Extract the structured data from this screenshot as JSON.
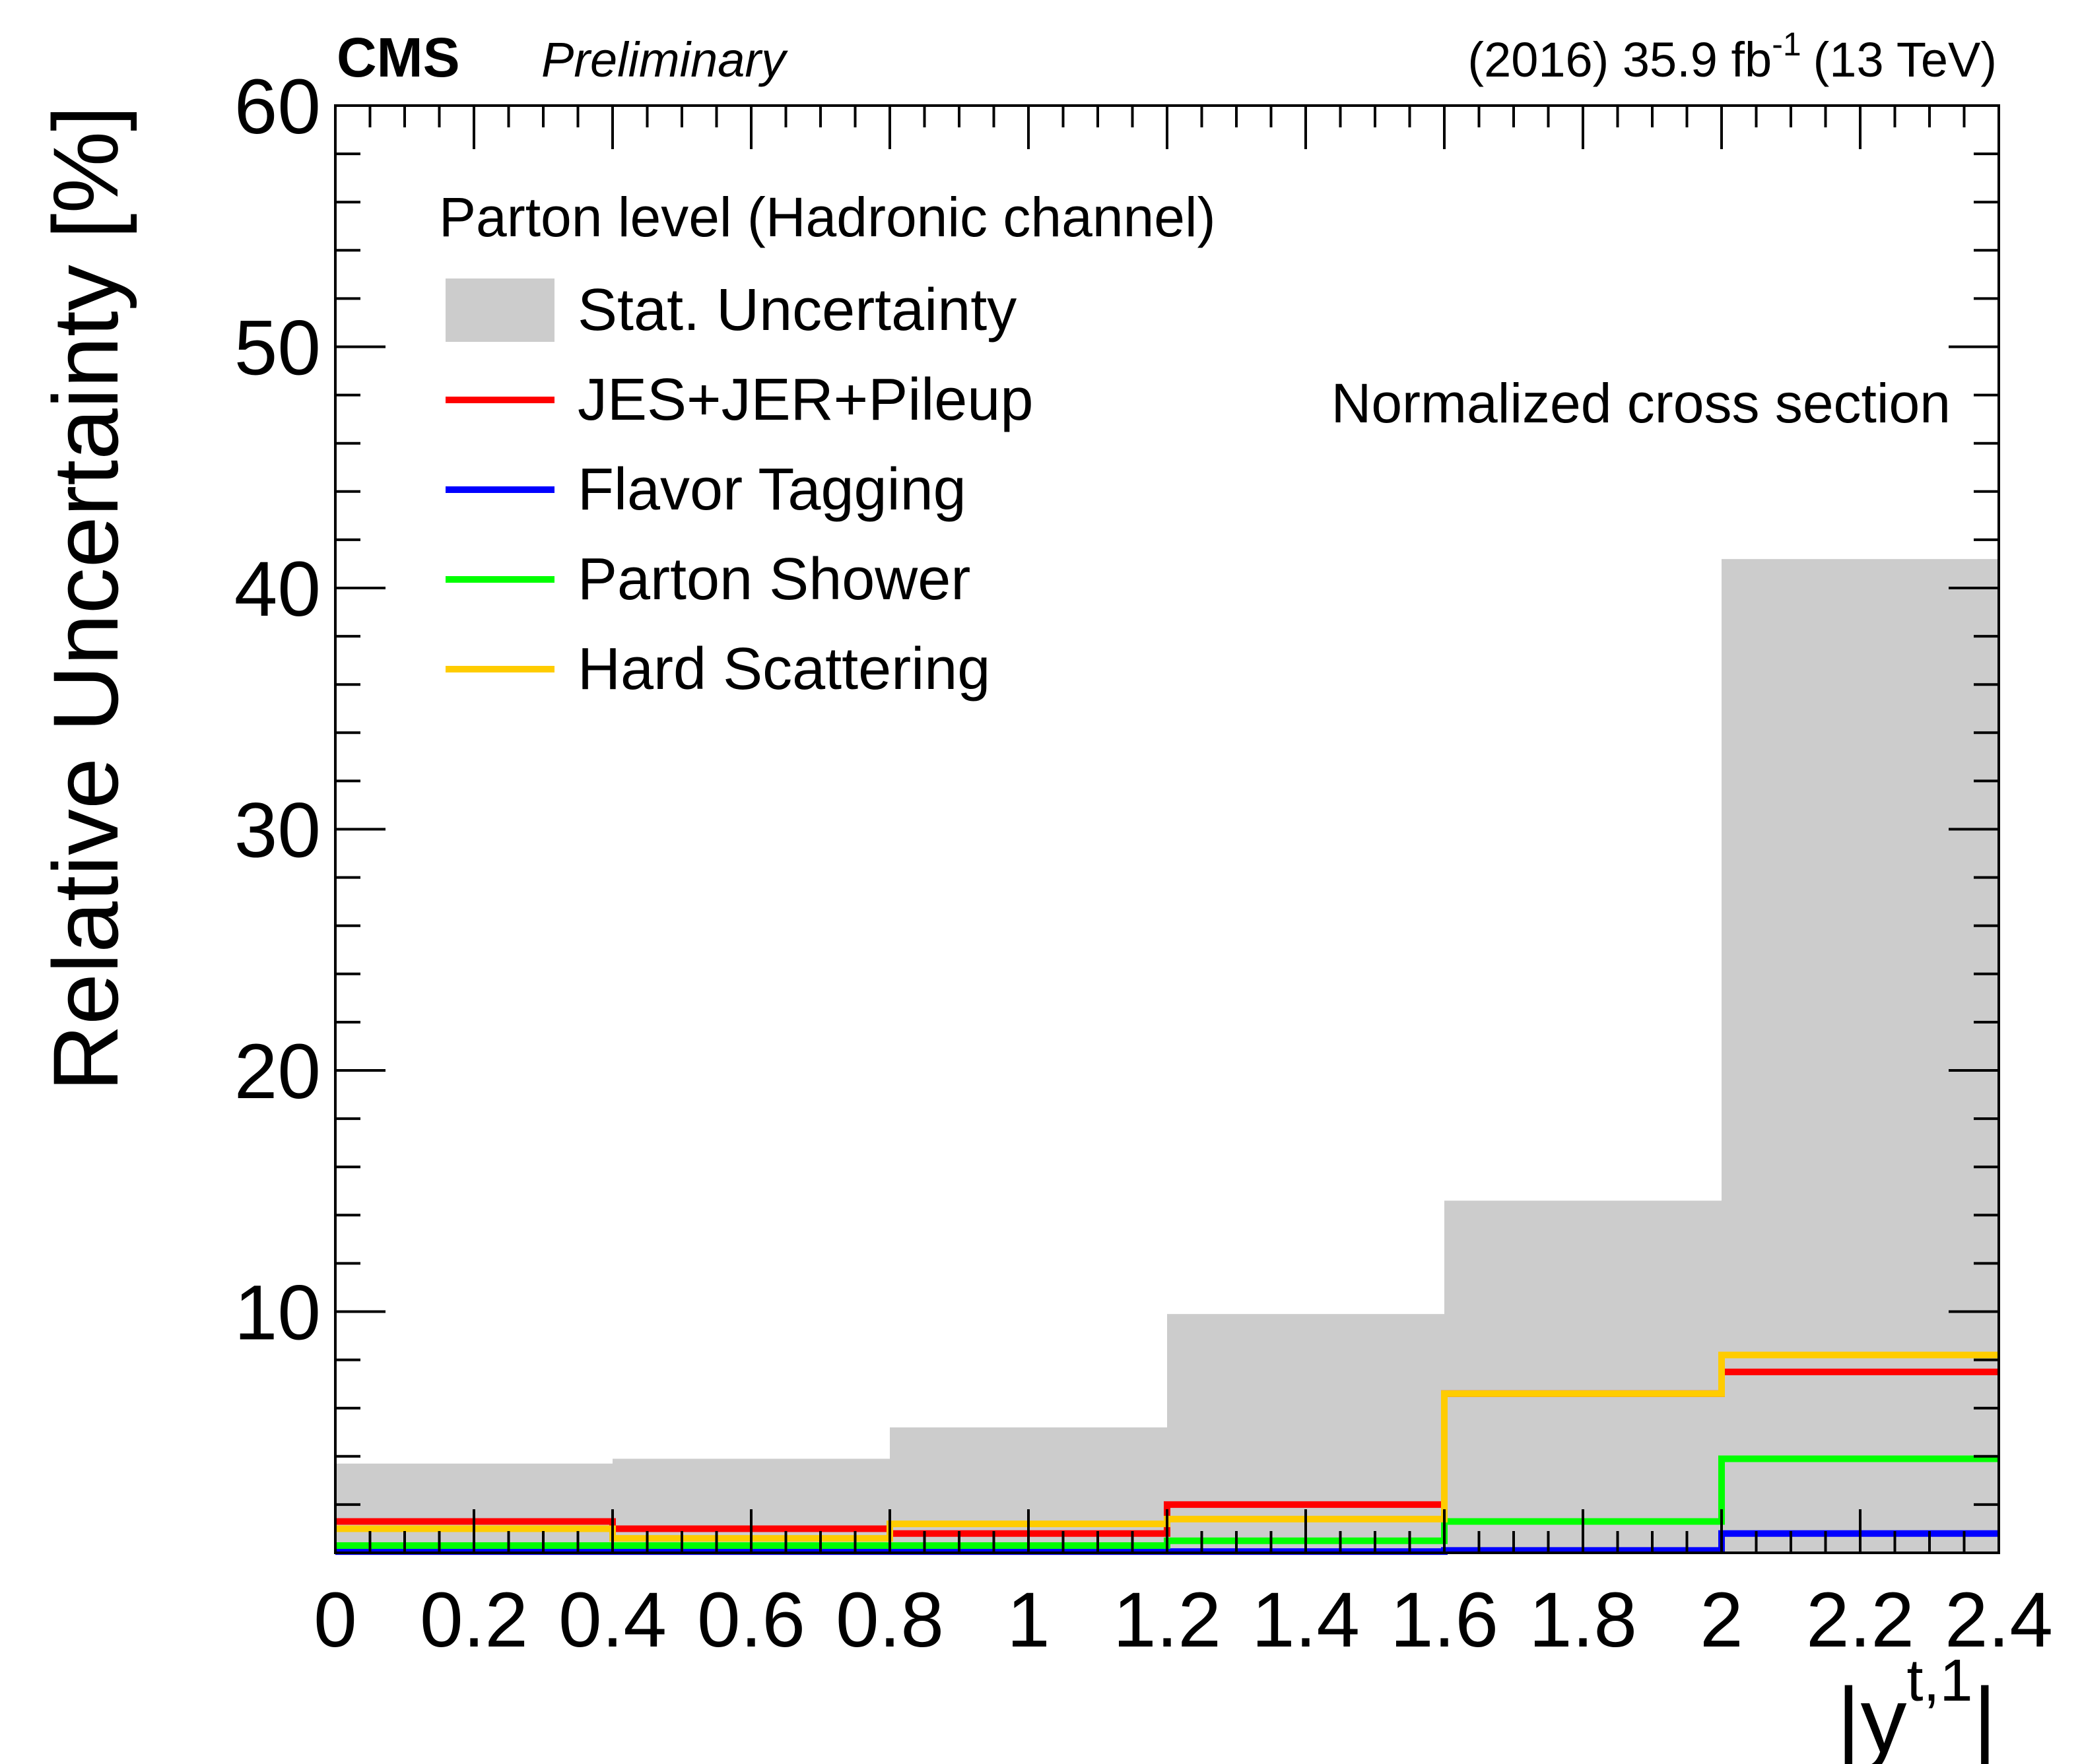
{
  "header": {
    "experiment": "CMS",
    "status": "Preliminary",
    "lumi_prefix": "(2016) 35.9 fb",
    "lumi_exponent": "-1",
    "energy": "(13 TeV)"
  },
  "legend": {
    "title": "Parton level (Hadronic channel)",
    "entries": [
      {
        "label": "Stat. Uncertainty",
        "kind": "fill",
        "color": "#cccccc"
      },
      {
        "label": "JES+JER+Pileup",
        "kind": "line",
        "color": "#ff0000"
      },
      {
        "label": "Flavor Tagging",
        "kind": "line",
        "color": "#0000ff"
      },
      {
        "label": "Parton Shower",
        "kind": "line",
        "color": "#00ff00"
      },
      {
        "label": "Hard Scattering",
        "kind": "line",
        "color": "#ffcc00"
      }
    ]
  },
  "annotation": "Normalized cross section",
  "chart_data": {
    "type": "histogram",
    "title": "",
    "xlabel_base": "|y",
    "xlabel_sup": "t,1",
    "xlabel_close": "|",
    "ylabel": "Relative Uncertainty [%]",
    "xlim": [
      0,
      2.4
    ],
    "ylim": [
      0,
      60
    ],
    "x_ticks": [
      "0",
      "0.2",
      "0.4",
      "0.6",
      "0.8",
      "1",
      "1.2",
      "1.4",
      "1.6",
      "1.8",
      "2",
      "2.2",
      "2.4"
    ],
    "x_tick_values": [
      0,
      0.2,
      0.4,
      0.6,
      0.8,
      1.0,
      1.2,
      1.4,
      1.6,
      1.8,
      2.0,
      2.2,
      2.4
    ],
    "y_ticks": [
      "10",
      "20",
      "30",
      "40",
      "50",
      "60"
    ],
    "y_tick_values": [
      10,
      20,
      30,
      40,
      50,
      60
    ],
    "bin_edges": [
      0,
      0.4,
      0.8,
      1.2,
      1.6,
      2.0,
      2.4
    ],
    "grid": false,
    "series": [
      {
        "name": "Stat. Uncertainty",
        "style": "fill",
        "color": "#cccccc",
        "values": [
          3.7,
          3.9,
          5.2,
          9.9,
          14.6,
          41.2
        ]
      },
      {
        "name": "JES+JER+Pileup",
        "style": "step",
        "color": "#ff0000",
        "values": [
          1.3,
          1.0,
          0.8,
          2.0,
          6.6,
          7.5
        ]
      },
      {
        "name": "Flavor Tagging",
        "style": "step",
        "color": "#0000ff",
        "values": [
          0.05,
          0.05,
          0.05,
          0.05,
          0.1,
          0.8
        ]
      },
      {
        "name": "Parton Shower",
        "style": "step",
        "color": "#00ff00",
        "values": [
          0.3,
          0.3,
          0.3,
          0.5,
          1.3,
          3.9
        ]
      },
      {
        "name": "Hard Scattering",
        "style": "step",
        "color": "#ffcc00",
        "values": [
          1.0,
          0.6,
          1.2,
          1.4,
          6.6,
          8.2
        ]
      }
    ]
  }
}
